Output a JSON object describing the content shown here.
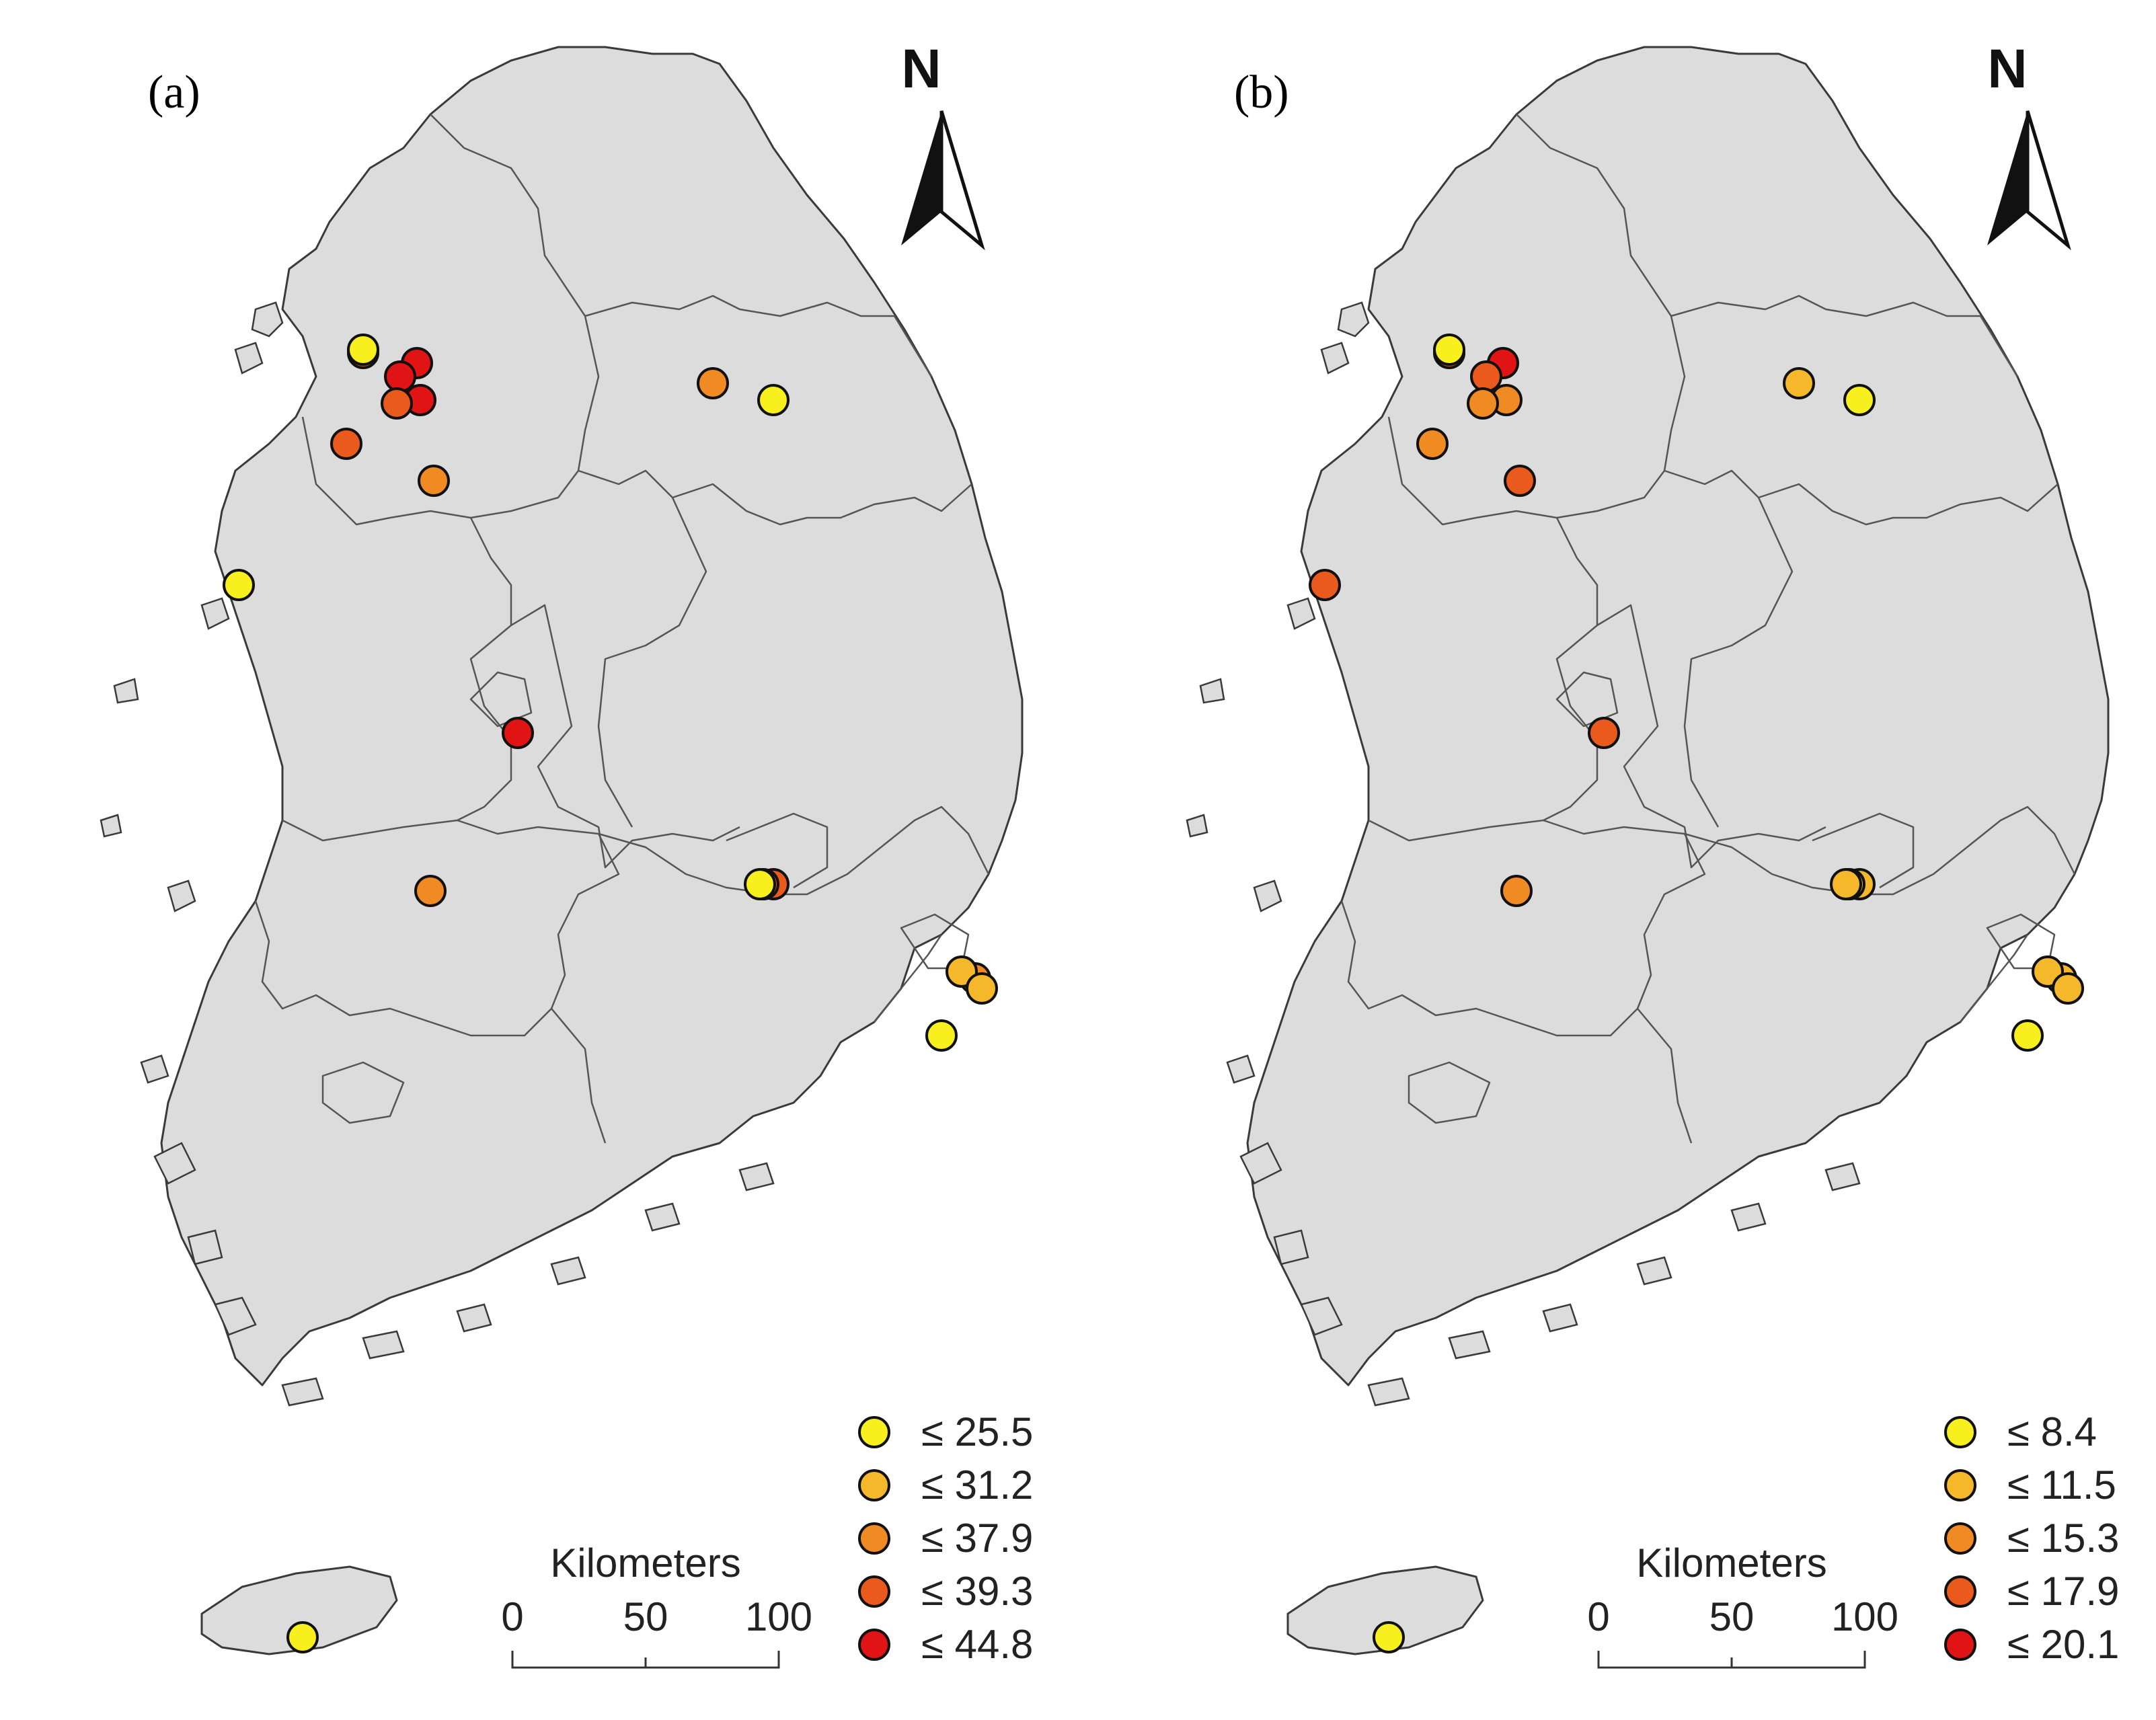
{
  "panels": [
    {
      "label": "(a)",
      "north": "N",
      "scale": {
        "title": "Kilometers",
        "ticks": [
          "0",
          "50",
          "100"
        ]
      },
      "legend": [
        {
          "text": "≤ 25.5",
          "color": "#f7f01e"
        },
        {
          "text": "≤ 31.2",
          "color": "#f5b82a"
        },
        {
          "text": "≤ 37.9",
          "color": "#f08a23"
        },
        {
          "text": "≤ 39.3",
          "color": "#ea5a1c"
        },
        {
          "text": "≤ 44.8",
          "color": "#e01414"
        }
      ],
      "stations": [
        3,
        4,
        4,
        4,
        3,
        3,
        2,
        2,
        0,
        0,
        0,
        4,
        2,
        3,
        3,
        2,
        0,
        1,
        1,
        0,
        0
      ]
    },
    {
      "label": "(b)",
      "north": "N",
      "scale": {
        "title": "Kilometers",
        "ticks": [
          "0",
          "50",
          "100"
        ]
      },
      "legend": [
        {
          "text": "≤ 8.4",
          "color": "#f7f01e"
        },
        {
          "text": "≤ 11.5",
          "color": "#f5b82a"
        },
        {
          "text": "≤ 15.3",
          "color": "#f08a23"
        },
        {
          "text": "≤ 17.9",
          "color": "#ea5a1c"
        },
        {
          "text": "≤ 20.1",
          "color": "#e01414"
        }
      ],
      "stations": [
        3,
        4,
        3,
        2,
        2,
        2,
        3,
        1,
        0,
        0,
        3,
        3,
        2,
        1,
        1,
        1,
        0,
        1,
        1,
        1,
        0
      ]
    }
  ]
}
